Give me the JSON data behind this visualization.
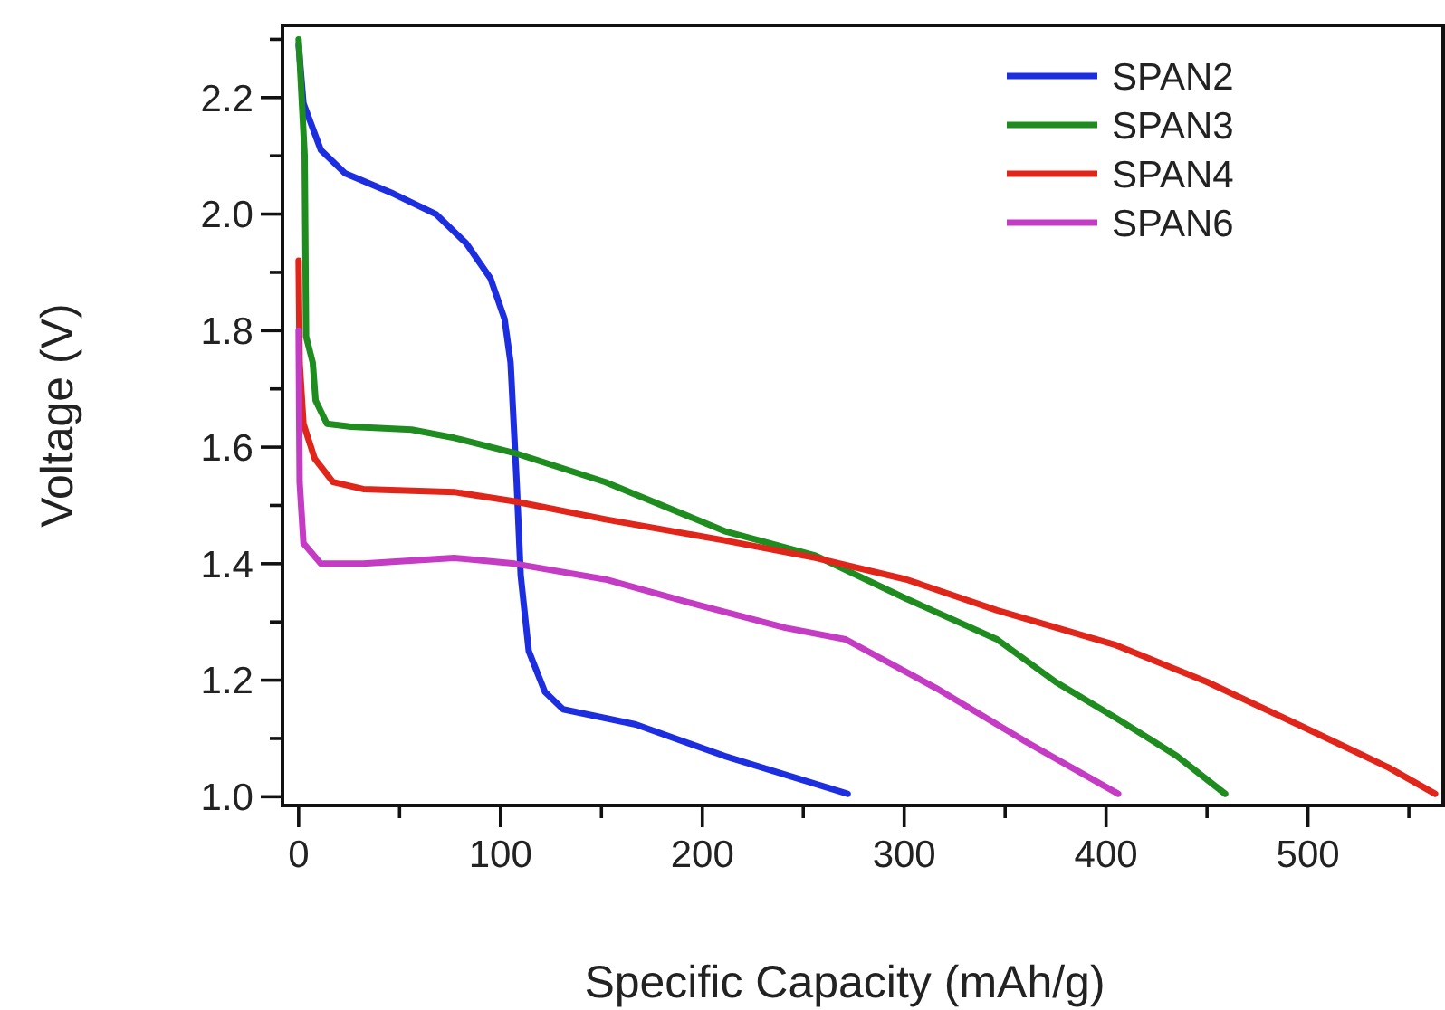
{
  "chart_data": {
    "type": "line",
    "xlabel": "Specific Capacity (mAh/g)",
    "ylabel": "Voltage (V)",
    "xlim": [
      -8,
      567
    ],
    "ylim": [
      0.985,
      2.324
    ],
    "xticks": [
      0,
      {
        "value": 50,
        "label": null
      },
      100,
      {
        "value": 150,
        "label": null
      },
      200,
      {
        "value": 250,
        "label": null
      },
      300,
      {
        "value": 350,
        "label": null
      },
      400,
      {
        "value": 450,
        "label": null
      },
      500,
      {
        "value": 550,
        "label": null
      }
    ],
    "yticks": [
      {
        "value": 1.0,
        "label": "1.0"
      },
      {
        "value": 1.1,
        "label": null
      },
      1.2,
      {
        "value": 1.3,
        "label": null
      },
      1.4,
      {
        "value": 1.5,
        "label": null
      },
      1.6,
      {
        "value": 1.7,
        "label": null
      },
      1.8,
      {
        "value": 1.9,
        "label": null
      },
      {
        "value": 2.0,
        "label": "2.0"
      },
      {
        "value": 2.1,
        "label": null
      },
      2.2,
      {
        "value": 2.3,
        "label": null
      }
    ],
    "grid": false,
    "legend": "top right",
    "marker": "none",
    "line_style": "solid",
    "series": [
      {
        "name": "SPAN2",
        "color": "#1c2ee0",
        "x": [
          0,
          2.4,
          11,
          23,
          47,
          68,
          83,
          95,
          102,
          105,
          108,
          110,
          114,
          122,
          131,
          167,
          211,
          272
        ],
        "values": [
          2.29,
          2.19,
          2.11,
          2.07,
          2.035,
          2.0,
          1.95,
          1.89,
          1.82,
          1.745,
          1.54,
          1.38,
          1.25,
          1.18,
          1.15,
          1.124,
          1.07,
          1.005
        ]
      },
      {
        "name": "SPAN3",
        "color": "#1f8c1f",
        "x": [
          0,
          3,
          3.7,
          7,
          8.4,
          14,
          26,
          56,
          77,
          107,
          152,
          211,
          256,
          301,
          346,
          375,
          405,
          435,
          459
        ],
        "values": [
          2.3,
          2.1,
          1.79,
          1.745,
          1.68,
          1.64,
          1.635,
          1.63,
          1.616,
          1.59,
          1.54,
          1.456,
          1.414,
          1.34,
          1.27,
          1.197,
          1.135,
          1.07,
          1.005
        ]
      },
      {
        "name": "SPAN4",
        "color": "#e0261a",
        "x": [
          0,
          0.5,
          2.4,
          8,
          17,
          32,
          77,
          107,
          152,
          211,
          256,
          301,
          346,
          405,
          450,
          495,
          540,
          563
        ],
        "values": [
          1.92,
          1.745,
          1.64,
          1.58,
          1.54,
          1.528,
          1.523,
          1.507,
          1.476,
          1.44,
          1.41,
          1.373,
          1.32,
          1.26,
          1.197,
          1.124,
          1.05,
          1.005
        ]
      },
      {
        "name": "SPAN6",
        "color": "#c43cc4",
        "x": [
          0,
          0.5,
          2.4,
          11,
          32,
          77,
          107,
          152,
          197,
          241,
          271,
          316,
          361,
          406
        ],
        "values": [
          1.8,
          1.54,
          1.435,
          1.4,
          1.4,
          1.41,
          1.4,
          1.373,
          1.33,
          1.29,
          1.27,
          1.186,
          1.093,
          1.005
        ]
      }
    ]
  }
}
